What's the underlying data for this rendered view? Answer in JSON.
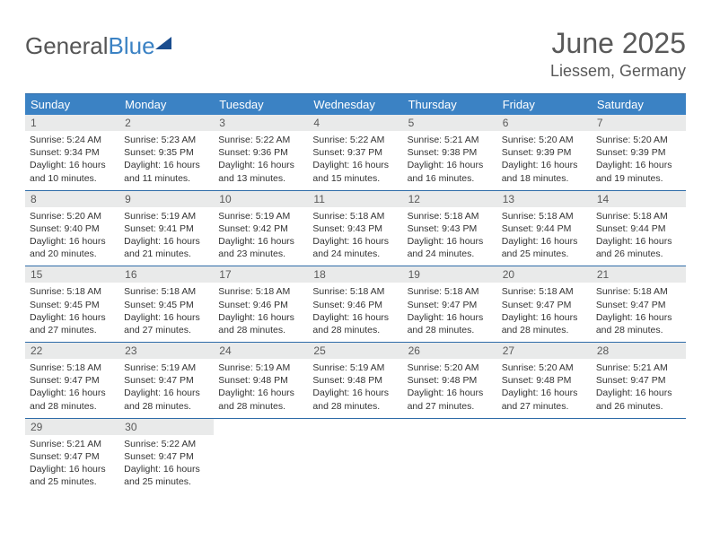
{
  "logo": {
    "part1": "General",
    "part2": "Blue"
  },
  "title": "June 2025",
  "location": "Liessem, Germany",
  "theme": {
    "header_bg": "#3b82c4",
    "border": "#2f6ca8",
    "daynum_bg": "#e9eaea",
    "text": "#333333",
    "title_color": "#595959"
  },
  "days_of_week": [
    "Sunday",
    "Monday",
    "Tuesday",
    "Wednesday",
    "Thursday",
    "Friday",
    "Saturday"
  ],
  "weeks": [
    [
      {
        "n": "1",
        "sr": "Sunrise: 5:24 AM",
        "ss": "Sunset: 9:34 PM",
        "d1": "Daylight: 16 hours",
        "d2": "and 10 minutes."
      },
      {
        "n": "2",
        "sr": "Sunrise: 5:23 AM",
        "ss": "Sunset: 9:35 PM",
        "d1": "Daylight: 16 hours",
        "d2": "and 11 minutes."
      },
      {
        "n": "3",
        "sr": "Sunrise: 5:22 AM",
        "ss": "Sunset: 9:36 PM",
        "d1": "Daylight: 16 hours",
        "d2": "and 13 minutes."
      },
      {
        "n": "4",
        "sr": "Sunrise: 5:22 AM",
        "ss": "Sunset: 9:37 PM",
        "d1": "Daylight: 16 hours",
        "d2": "and 15 minutes."
      },
      {
        "n": "5",
        "sr": "Sunrise: 5:21 AM",
        "ss": "Sunset: 9:38 PM",
        "d1": "Daylight: 16 hours",
        "d2": "and 16 minutes."
      },
      {
        "n": "6",
        "sr": "Sunrise: 5:20 AM",
        "ss": "Sunset: 9:39 PM",
        "d1": "Daylight: 16 hours",
        "d2": "and 18 minutes."
      },
      {
        "n": "7",
        "sr": "Sunrise: 5:20 AM",
        "ss": "Sunset: 9:39 PM",
        "d1": "Daylight: 16 hours",
        "d2": "and 19 minutes."
      }
    ],
    [
      {
        "n": "8",
        "sr": "Sunrise: 5:20 AM",
        "ss": "Sunset: 9:40 PM",
        "d1": "Daylight: 16 hours",
        "d2": "and 20 minutes."
      },
      {
        "n": "9",
        "sr": "Sunrise: 5:19 AM",
        "ss": "Sunset: 9:41 PM",
        "d1": "Daylight: 16 hours",
        "d2": "and 21 minutes."
      },
      {
        "n": "10",
        "sr": "Sunrise: 5:19 AM",
        "ss": "Sunset: 9:42 PM",
        "d1": "Daylight: 16 hours",
        "d2": "and 23 minutes."
      },
      {
        "n": "11",
        "sr": "Sunrise: 5:18 AM",
        "ss": "Sunset: 9:43 PM",
        "d1": "Daylight: 16 hours",
        "d2": "and 24 minutes."
      },
      {
        "n": "12",
        "sr": "Sunrise: 5:18 AM",
        "ss": "Sunset: 9:43 PM",
        "d1": "Daylight: 16 hours",
        "d2": "and 24 minutes."
      },
      {
        "n": "13",
        "sr": "Sunrise: 5:18 AM",
        "ss": "Sunset: 9:44 PM",
        "d1": "Daylight: 16 hours",
        "d2": "and 25 minutes."
      },
      {
        "n": "14",
        "sr": "Sunrise: 5:18 AM",
        "ss": "Sunset: 9:44 PM",
        "d1": "Daylight: 16 hours",
        "d2": "and 26 minutes."
      }
    ],
    [
      {
        "n": "15",
        "sr": "Sunrise: 5:18 AM",
        "ss": "Sunset: 9:45 PM",
        "d1": "Daylight: 16 hours",
        "d2": "and 27 minutes."
      },
      {
        "n": "16",
        "sr": "Sunrise: 5:18 AM",
        "ss": "Sunset: 9:45 PM",
        "d1": "Daylight: 16 hours",
        "d2": "and 27 minutes."
      },
      {
        "n": "17",
        "sr": "Sunrise: 5:18 AM",
        "ss": "Sunset: 9:46 PM",
        "d1": "Daylight: 16 hours",
        "d2": "and 28 minutes."
      },
      {
        "n": "18",
        "sr": "Sunrise: 5:18 AM",
        "ss": "Sunset: 9:46 PM",
        "d1": "Daylight: 16 hours",
        "d2": "and 28 minutes."
      },
      {
        "n": "19",
        "sr": "Sunrise: 5:18 AM",
        "ss": "Sunset: 9:47 PM",
        "d1": "Daylight: 16 hours",
        "d2": "and 28 minutes."
      },
      {
        "n": "20",
        "sr": "Sunrise: 5:18 AM",
        "ss": "Sunset: 9:47 PM",
        "d1": "Daylight: 16 hours",
        "d2": "and 28 minutes."
      },
      {
        "n": "21",
        "sr": "Sunrise: 5:18 AM",
        "ss": "Sunset: 9:47 PM",
        "d1": "Daylight: 16 hours",
        "d2": "and 28 minutes."
      }
    ],
    [
      {
        "n": "22",
        "sr": "Sunrise: 5:18 AM",
        "ss": "Sunset: 9:47 PM",
        "d1": "Daylight: 16 hours",
        "d2": "and 28 minutes."
      },
      {
        "n": "23",
        "sr": "Sunrise: 5:19 AM",
        "ss": "Sunset: 9:47 PM",
        "d1": "Daylight: 16 hours",
        "d2": "and 28 minutes."
      },
      {
        "n": "24",
        "sr": "Sunrise: 5:19 AM",
        "ss": "Sunset: 9:48 PM",
        "d1": "Daylight: 16 hours",
        "d2": "and 28 minutes."
      },
      {
        "n": "25",
        "sr": "Sunrise: 5:19 AM",
        "ss": "Sunset: 9:48 PM",
        "d1": "Daylight: 16 hours",
        "d2": "and 28 minutes."
      },
      {
        "n": "26",
        "sr": "Sunrise: 5:20 AM",
        "ss": "Sunset: 9:48 PM",
        "d1": "Daylight: 16 hours",
        "d2": "and 27 minutes."
      },
      {
        "n": "27",
        "sr": "Sunrise: 5:20 AM",
        "ss": "Sunset: 9:48 PM",
        "d1": "Daylight: 16 hours",
        "d2": "and 27 minutes."
      },
      {
        "n": "28",
        "sr": "Sunrise: 5:21 AM",
        "ss": "Sunset: 9:47 PM",
        "d1": "Daylight: 16 hours",
        "d2": "and 26 minutes."
      }
    ],
    [
      {
        "n": "29",
        "sr": "Sunrise: 5:21 AM",
        "ss": "Sunset: 9:47 PM",
        "d1": "Daylight: 16 hours",
        "d2": "and 25 minutes."
      },
      {
        "n": "30",
        "sr": "Sunrise: 5:22 AM",
        "ss": "Sunset: 9:47 PM",
        "d1": "Daylight: 16 hours",
        "d2": "and 25 minutes."
      },
      null,
      null,
      null,
      null,
      null
    ]
  ]
}
